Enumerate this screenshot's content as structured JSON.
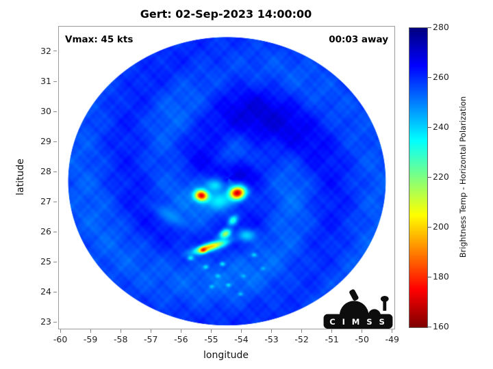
{
  "chart_data": {
    "type": "heatmap",
    "title": "Gert: 02-Sep-2023 14:00:00",
    "xlabel": "longitude",
    "ylabel": "latitude",
    "xlim": [
      -60.07,
      -48.95
    ],
    "ylim": [
      22.8,
      32.84
    ],
    "xticks": [
      -60,
      -59,
      -58,
      -57,
      -56,
      -55,
      -54,
      -53,
      -52,
      -51,
      -50,
      -49
    ],
    "yticks": [
      23,
      24,
      25,
      26,
      27,
      28,
      29,
      30,
      31,
      32
    ],
    "clim": [
      160,
      280
    ],
    "colormap": "jet reversed (280 K = dark blue, 160 K = dark red)",
    "annotations": {
      "vmax": "Vmax: 45 kts",
      "time_away": "00:03 away"
    },
    "colorbar": {
      "label": "Brightness Temp - Horizontal Polarization",
      "ticks": [
        160,
        180,
        200,
        220,
        240,
        260,
        280
      ]
    },
    "logo_text": "C I M S S",
    "swath": {
      "center": [
        -54.5,
        27.7
      ],
      "rx": 5.25,
      "ry": 4.78
    },
    "field": {
      "background_tb": 257,
      "storm_center": [
        -54.45,
        27.8
      ],
      "band_amplitude": 4.5,
      "dark_patches": [
        {
          "lon": -52.6,
          "lat": 29.2,
          "amp": 6,
          "sx": 3.5,
          "sy": 2.5
        },
        {
          "lon": -54.35,
          "lat": 28.05,
          "amp": 8,
          "sx": 0.3,
          "sy": 0.16
        },
        {
          "lon": -54.1,
          "lat": 30.6,
          "amp": 4,
          "sx": 2.5,
          "sy": 1.8
        },
        {
          "lon": -56.8,
          "lat": 28.8,
          "amp": 3,
          "sx": 2.0,
          "sy": 1.5
        }
      ],
      "cells": [
        {
          "lon": -55.33,
          "lat": 27.22,
          "tb": 166,
          "rx": 0.23,
          "ry": 0.18,
          "rot": -0.2
        },
        {
          "lon": -54.17,
          "lat": 27.3,
          "tb": 164,
          "rx": 0.27,
          "ry": 0.2,
          "rot": 0.3
        },
        {
          "lon": -54.75,
          "lat": 27.05,
          "tb": 236,
          "rx": 0.4,
          "ry": 0.28,
          "rot": 0.1
        },
        {
          "lon": -54.9,
          "lat": 27.55,
          "tb": 238,
          "rx": 0.3,
          "ry": 0.22,
          "rot": 0.0
        },
        {
          "lon": -55.05,
          "lat": 25.52,
          "tb": 198,
          "rx": 0.55,
          "ry": 0.13,
          "rot": 0.3
        },
        {
          "lon": -55.28,
          "lat": 25.42,
          "tb": 176,
          "rx": 0.13,
          "ry": 0.09,
          "rot": 0.3
        },
        {
          "lon": -54.55,
          "lat": 25.95,
          "tb": 215,
          "rx": 0.2,
          "ry": 0.14,
          "rot": 0.55
        },
        {
          "lon": -54.3,
          "lat": 26.4,
          "tb": 230,
          "rx": 0.18,
          "ry": 0.13,
          "rot": 0.85
        },
        {
          "lon": -53.85,
          "lat": 25.9,
          "tb": 240,
          "rx": 0.3,
          "ry": 0.2,
          "rot": 0.0
        },
        {
          "lon": -56.35,
          "lat": 26.55,
          "tb": 248,
          "rx": 0.6,
          "ry": 0.22,
          "rot": -0.55
        },
        {
          "lon": -55.7,
          "lat": 25.15,
          "tb": 236,
          "rx": 0.1,
          "ry": 0.08,
          "rot": 0.0
        },
        {
          "lon": -55.2,
          "lat": 24.85,
          "tb": 238,
          "rx": 0.09,
          "ry": 0.07,
          "rot": 0.0
        },
        {
          "lon": -54.8,
          "lat": 24.55,
          "tb": 240,
          "rx": 0.09,
          "ry": 0.07,
          "rot": 0.0
        },
        {
          "lon": -54.45,
          "lat": 24.25,
          "tb": 238,
          "rx": 0.08,
          "ry": 0.06,
          "rot": 0.0
        },
        {
          "lon": -54.05,
          "lat": 23.95,
          "tb": 242,
          "rx": 0.08,
          "ry": 0.06,
          "rot": 0.0
        },
        {
          "lon": -53.6,
          "lat": 25.25,
          "tb": 240,
          "rx": 0.09,
          "ry": 0.07,
          "rot": 0.0
        },
        {
          "lon": -53.3,
          "lat": 24.8,
          "tb": 244,
          "rx": 0.08,
          "ry": 0.06,
          "rot": 0.0
        },
        {
          "lon": -54.65,
          "lat": 24.95,
          "tb": 237,
          "rx": 0.09,
          "ry": 0.07,
          "rot": 0.0
        },
        {
          "lon": -55.0,
          "lat": 24.2,
          "tb": 241,
          "rx": 0.08,
          "ry": 0.06,
          "rot": 0.0
        },
        {
          "lon": -53.95,
          "lat": 24.55,
          "tb": 243,
          "rx": 0.08,
          "ry": 0.06,
          "rot": 0.0
        }
      ]
    }
  }
}
